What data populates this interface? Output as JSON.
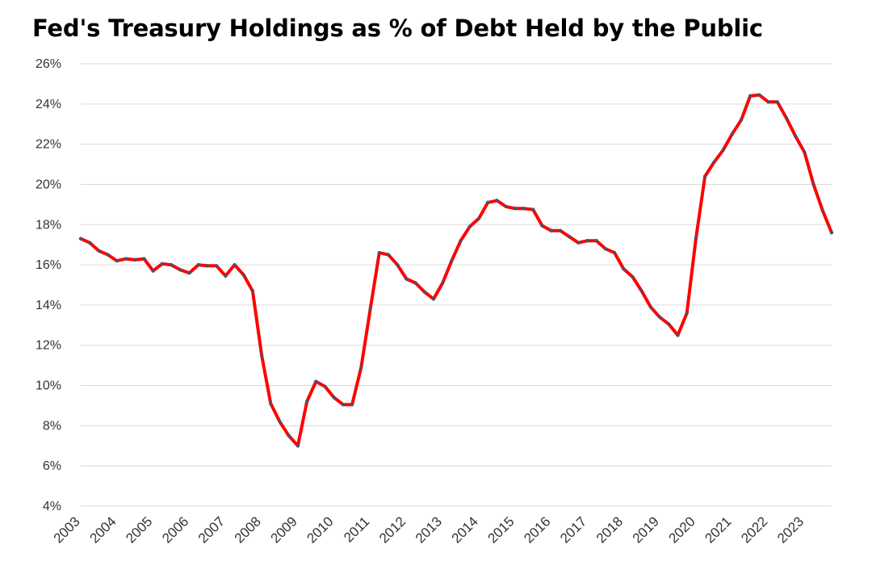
{
  "chart_data": {
    "type": "line",
    "title": "Fed's Treasury Holdings as % of Debt Held by the Public",
    "xlabel": "",
    "ylabel": "",
    "ylim": [
      4,
      26
    ],
    "y_ticks": [
      "4%",
      "6%",
      "8%",
      "10%",
      "12%",
      "14%",
      "16%",
      "18%",
      "20%",
      "22%",
      "24%",
      "26%"
    ],
    "y_tick_values": [
      4,
      6,
      8,
      10,
      12,
      14,
      16,
      18,
      20,
      22,
      24,
      26
    ],
    "x_tick_labels": [
      "2003",
      "2004",
      "2005",
      "2006",
      "2007",
      "2008",
      "2009",
      "2010",
      "2011",
      "2012",
      "2013",
      "2014",
      "2015",
      "2016",
      "2017",
      "2018",
      "2019",
      "2020",
      "2021",
      "2022",
      "2023"
    ],
    "grid": true,
    "line_color": "#ff0000",
    "marker_color": "#44546a",
    "series": [
      {
        "x": [
          2003.0,
          2003.25,
          2003.5,
          2003.75,
          2004.0,
          2004.25,
          2004.5,
          2004.75,
          2005.0,
          2005.25,
          2005.5,
          2005.75,
          2006.0,
          2006.25,
          2006.5,
          2006.75,
          2007.0,
          2007.25,
          2007.5,
          2007.75,
          2008.0,
          2008.25,
          2008.5,
          2008.75,
          2009.0,
          2009.25,
          2009.5,
          2009.75,
          2010.0,
          2010.25,
          2010.5,
          2010.75,
          2011.0,
          2011.25,
          2011.5,
          2011.75,
          2012.0,
          2012.25,
          2012.5,
          2012.75,
          2013.0,
          2013.25,
          2013.5,
          2013.75,
          2014.0,
          2014.25,
          2014.5,
          2014.75,
          2015.0,
          2015.25,
          2015.5,
          2015.75,
          2016.0,
          2016.25,
          2016.5,
          2016.75,
          2017.0,
          2017.25,
          2017.5,
          2017.75,
          2018.0,
          2018.25,
          2018.5,
          2018.75,
          2019.0,
          2019.25,
          2019.5,
          2019.75,
          2020.0,
          2020.25,
          2020.5,
          2020.75,
          2021.0,
          2021.25,
          2021.5,
          2021.75,
          2022.0,
          2022.25,
          2022.5,
          2022.75,
          2023.0,
          2023.25,
          2023.5,
          2023.75
        ],
        "values": [
          17.3,
          17.1,
          16.7,
          16.5,
          16.2,
          16.3,
          16.25,
          16.3,
          15.7,
          16.05,
          16.0,
          15.75,
          15.6,
          16.0,
          15.95,
          15.95,
          15.45,
          16.0,
          15.5,
          14.7,
          11.5,
          9.1,
          8.2,
          7.5,
          7.0,
          9.2,
          10.2,
          9.95,
          9.4,
          9.05,
          9.05,
          10.9,
          13.8,
          16.6,
          16.5,
          16.0,
          15.3,
          15.1,
          14.65,
          14.3,
          15.1,
          16.2,
          17.2,
          17.9,
          18.3,
          19.1,
          19.2,
          18.9,
          18.8,
          18.8,
          18.75,
          17.95,
          17.7,
          17.7,
          17.4,
          17.1,
          17.2,
          17.2,
          16.8,
          16.6,
          15.8,
          15.4,
          14.7,
          13.9,
          13.4,
          13.05,
          12.5,
          13.6,
          17.3,
          20.4,
          21.1,
          21.7,
          22.5,
          23.2,
          24.4,
          24.45,
          24.1,
          24.1,
          23.3,
          22.4,
          21.6,
          20.0,
          18.7,
          17.6
        ]
      }
    ]
  }
}
